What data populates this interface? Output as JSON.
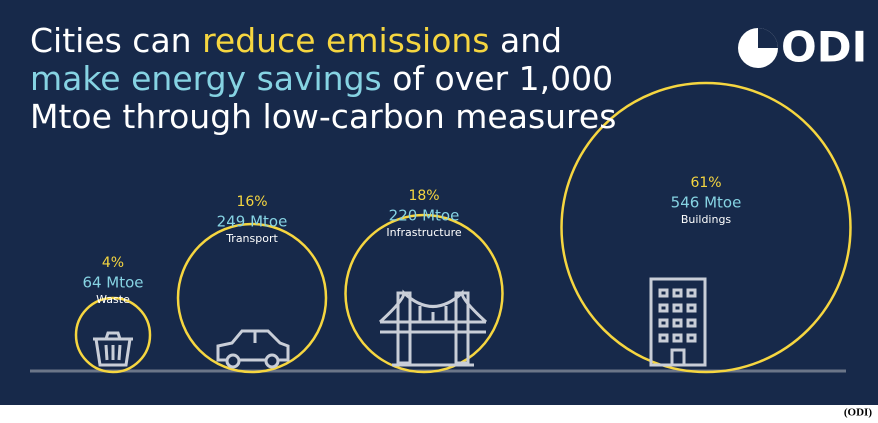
{
  "chart_data": {
    "type": "bubble",
    "title_lines": [
      [
        {
          "text": "Cities can ",
          "color": "#ffffff"
        },
        {
          "text": "reduce emissions",
          "color": "#f6d640"
        },
        {
          "text": " and",
          "color": "#ffffff"
        }
      ],
      [
        {
          "text": "make energy savings",
          "color": "#86d3e3"
        },
        {
          "text": " of over 1,000",
          "color": "#ffffff"
        }
      ],
      [
        {
          "text": "Mtoe through low-carbon measures",
          "color": "#ffffff"
        }
      ]
    ],
    "logo": "ODI",
    "source": "(ODI)",
    "categories": [
      "Waste",
      "Transport",
      "Infrastructure",
      "Buildings"
    ],
    "values": [
      4,
      16,
      18,
      61
    ],
    "value_labels": [
      "4%",
      "16%",
      "18%",
      "61%"
    ],
    "savings": {
      "values": [
        64,
        249,
        220,
        546
      ],
      "value_labels": [
        "64 Mtoe",
        "249 Mtoe",
        "220 Mtoe",
        "546 Mtoe"
      ]
    },
    "color": "#f6d640"
  }
}
